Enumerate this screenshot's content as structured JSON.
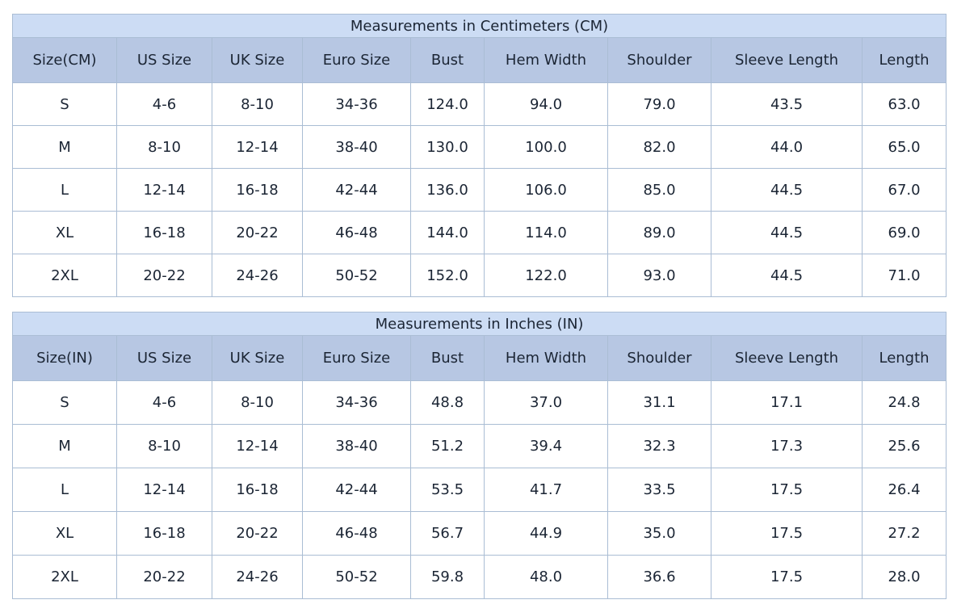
{
  "colors": {
    "title_bg": "#ccdcf4",
    "header_bg": "#b7c7e3",
    "border": "#aabdd4",
    "border_outer": "#9badc4",
    "text": "#1b2534",
    "cell_bg": "#ffffff"
  },
  "tables": [
    {
      "id": "cm",
      "title": "Measurements in Centimeters (CM)",
      "columns": [
        "Size(CM)",
        "US Size",
        "UK Size",
        "Euro Size",
        "Bust",
        "Hem Width",
        "Shoulder",
        "Sleeve Length",
        "Length"
      ],
      "rows": [
        [
          "S",
          "4-6",
          "8-10",
          "34-36",
          "124.0",
          "94.0",
          "79.0",
          "43.5",
          "63.0"
        ],
        [
          "M",
          "8-10",
          "12-14",
          "38-40",
          "130.0",
          "100.0",
          "82.0",
          "44.0",
          "65.0"
        ],
        [
          "L",
          "12-14",
          "16-18",
          "42-44",
          "136.0",
          "106.0",
          "85.0",
          "44.5",
          "67.0"
        ],
        [
          "XL",
          "16-18",
          "20-22",
          "46-48",
          "144.0",
          "114.0",
          "89.0",
          "44.5",
          "69.0"
        ],
        [
          "2XL",
          "20-22",
          "24-26",
          "50-52",
          "152.0",
          "122.0",
          "93.0",
          "44.5",
          "71.0"
        ]
      ]
    },
    {
      "id": "in",
      "title": "Measurements in Inches (IN)",
      "columns": [
        "Size(IN)",
        "US Size",
        "UK Size",
        "Euro Size",
        "Bust",
        "Hem Width",
        "Shoulder",
        "Sleeve Length",
        "Length"
      ],
      "rows": [
        [
          "S",
          "4-6",
          "8-10",
          "34-36",
          "48.8",
          "37.0",
          "31.1",
          "17.1",
          "24.8"
        ],
        [
          "M",
          "8-10",
          "12-14",
          "38-40",
          "51.2",
          "39.4",
          "32.3",
          "17.3",
          "25.6"
        ],
        [
          "L",
          "12-14",
          "16-18",
          "42-44",
          "53.5",
          "41.7",
          "33.5",
          "17.5",
          "26.4"
        ],
        [
          "XL",
          "16-18",
          "20-22",
          "46-48",
          "56.7",
          "44.9",
          "35.0",
          "17.5",
          "27.2"
        ],
        [
          "2XL",
          "20-22",
          "24-26",
          "50-52",
          "59.8",
          "48.0",
          "36.6",
          "17.5",
          "28.0"
        ]
      ]
    }
  ]
}
